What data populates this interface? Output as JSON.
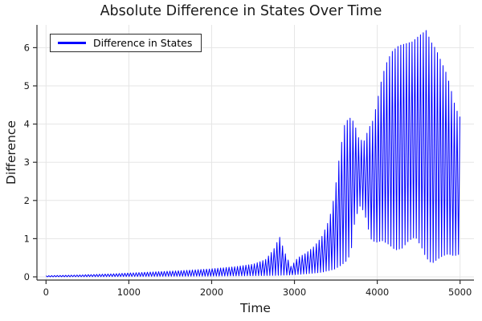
{
  "chart_data": {
    "type": "line",
    "title": "Absolute Difference in States Over Time",
    "xlabel": "Time",
    "ylabel": "Difference",
    "xlim": [
      0,
      5000
    ],
    "ylim": [
      0,
      6.5
    ],
    "grid": true,
    "legend_position": "top-left",
    "x_ticks": [
      0,
      1000,
      2000,
      3000,
      4000,
      5000
    ],
    "y_ticks": [
      0,
      1,
      2,
      3,
      4,
      5,
      6
    ],
    "colors": {
      "grid": "#e5e5e5",
      "axis": "#2e2e2e",
      "tick_label": "#1a1a1a",
      "title": "#1a1a1a",
      "background": "#ffffff"
    },
    "series": [
      {
        "name": "Difference in States",
        "color": "#0000ff",
        "line_width": 1,
        "description": "Absolute difference between two chaotic trajectories: a high-frequency oscillation whose amplitude grows slowly until t~2500, bursts to 1.05 at t~2820, dips, climbs to ~4.2 near t~3650 with a dense band 1.9-3.6 around t~3800, then surges to a maximum of ~6.45 at t~4590 before declining to ~4.2 at t=5000. Rendered as an oscillation bounded by the envelopes below.",
        "oscillation_period": 34,
        "peak": {
          "t": 4590,
          "value": 6.45
        },
        "first_burst": {
          "t": 2820,
          "value": 1.05
        },
        "end_value": 4.18,
        "upper_envelope": [
          [
            0,
            0.03
          ],
          [
            400,
            0.05
          ],
          [
            800,
            0.08
          ],
          [
            1200,
            0.12
          ],
          [
            1600,
            0.16
          ],
          [
            2000,
            0.21
          ],
          [
            2300,
            0.27
          ],
          [
            2500,
            0.33
          ],
          [
            2650,
            0.45
          ],
          [
            2750,
            0.72
          ],
          [
            2820,
            1.05
          ],
          [
            2880,
            0.65
          ],
          [
            2960,
            0.27
          ],
          [
            3040,
            0.5
          ],
          [
            3140,
            0.62
          ],
          [
            3240,
            0.8
          ],
          [
            3330,
            1.05
          ],
          [
            3420,
            1.5
          ],
          [
            3480,
            2.1
          ],
          [
            3540,
            3.1
          ],
          [
            3600,
            3.95
          ],
          [
            3660,
            4.18
          ],
          [
            3720,
            4.05
          ],
          [
            3780,
            3.6
          ],
          [
            3840,
            3.55
          ],
          [
            3900,
            3.9
          ],
          [
            3950,
            4.1
          ],
          [
            4000,
            4.6
          ],
          [
            4060,
            5.25
          ],
          [
            4120,
            5.65
          ],
          [
            4180,
            5.9
          ],
          [
            4260,
            6.05
          ],
          [
            4340,
            6.1
          ],
          [
            4420,
            6.15
          ],
          [
            4500,
            6.3
          ],
          [
            4590,
            6.45
          ],
          [
            4650,
            6.15
          ],
          [
            4710,
            5.95
          ],
          [
            4770,
            5.65
          ],
          [
            4830,
            5.35
          ],
          [
            4880,
            5.0
          ],
          [
            4930,
            4.55
          ],
          [
            4970,
            4.3
          ],
          [
            5000,
            4.18
          ]
        ],
        "lower_envelope": [
          [
            0,
            0.0
          ],
          [
            1000,
            0.01
          ],
          [
            2000,
            0.02
          ],
          [
            2500,
            0.03
          ],
          [
            2820,
            0.04
          ],
          [
            2960,
            0.05
          ],
          [
            3140,
            0.08
          ],
          [
            3330,
            0.12
          ],
          [
            3480,
            0.2
          ],
          [
            3560,
            0.3
          ],
          [
            3620,
            0.4
          ],
          [
            3680,
            0.6
          ],
          [
            3730,
            1.5
          ],
          [
            3800,
            1.9
          ],
          [
            3860,
            1.55
          ],
          [
            3920,
            1.0
          ],
          [
            3980,
            0.9
          ],
          [
            4060,
            0.95
          ],
          [
            4140,
            0.85
          ],
          [
            4220,
            0.7
          ],
          [
            4300,
            0.75
          ],
          [
            4380,
            0.95
          ],
          [
            4460,
            1.05
          ],
          [
            4530,
            0.8
          ],
          [
            4590,
            0.5
          ],
          [
            4660,
            0.35
          ],
          [
            4720,
            0.45
          ],
          [
            4790,
            0.55
          ],
          [
            4860,
            0.6
          ],
          [
            4930,
            0.55
          ],
          [
            5000,
            0.6
          ]
        ]
      }
    ]
  },
  "legend": {
    "label": "Difference in States"
  }
}
